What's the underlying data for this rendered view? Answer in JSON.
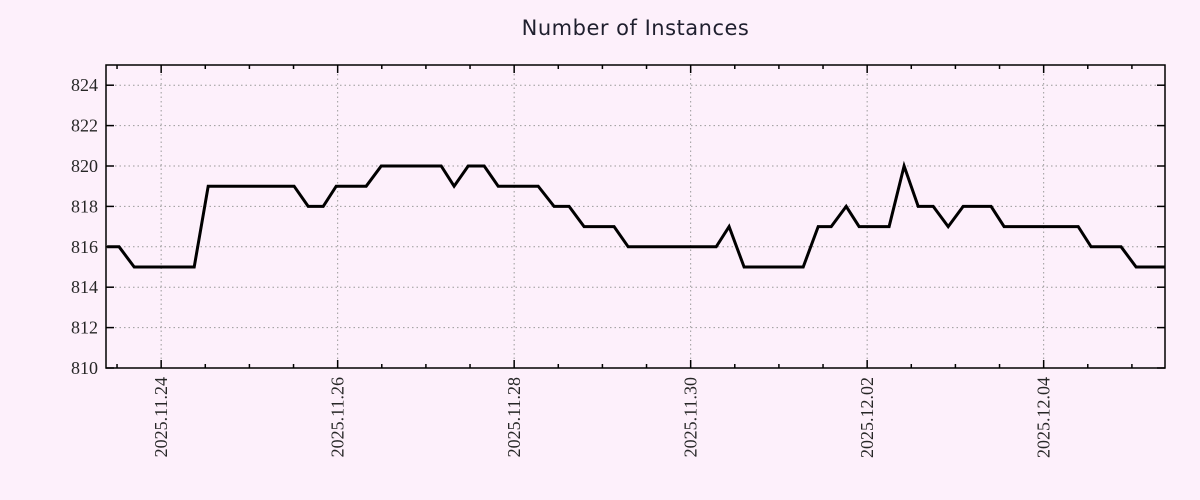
{
  "page": {
    "background_color": "#fdf0fb"
  },
  "chart_data": {
    "type": "line",
    "title": "Number of Instances",
    "xlabel": "",
    "ylabel": "",
    "legend": "none",
    "grid": "dotted",
    "line_color": "#000000",
    "grid_color": "#9a9a9a",
    "axis_color": "#000000",
    "label_color": "#262626",
    "ylim": [
      810,
      825
    ],
    "y_major_ticks": [
      810,
      812,
      814,
      816,
      818,
      820,
      822,
      824
    ],
    "x_domain_days": [
      -0.625,
      11.375
    ],
    "x_epoch_note": "day offsets relative to 2025.11.24 00:00",
    "x_major_ticks": [
      {
        "t": 0,
        "label": "2025.11.24"
      },
      {
        "t": 2,
        "label": "2025.11.26"
      },
      {
        "t": 4,
        "label": "2025.11.28"
      },
      {
        "t": 6,
        "label": "2025.11.30"
      },
      {
        "t": 8,
        "label": "2025.12.02"
      },
      {
        "t": 10,
        "label": "2025.12.04"
      }
    ],
    "x_minor_step_days": 0.5,
    "series": [
      {
        "name": "instances",
        "points": [
          [
            -0.612,
            816
          ],
          [
            -0.476,
            816
          ],
          [
            -0.306,
            815
          ],
          [
            0.374,
            815
          ],
          [
            0.533,
            819
          ],
          [
            1.507,
            819
          ],
          [
            1.666,
            818
          ],
          [
            1.836,
            818
          ],
          [
            1.983,
            819
          ],
          [
            2.323,
            819
          ],
          [
            2.493,
            820
          ],
          [
            3.173,
            820
          ],
          [
            3.32,
            819
          ],
          [
            3.479,
            820
          ],
          [
            3.66,
            820
          ],
          [
            3.819,
            819
          ],
          [
            4.272,
            819
          ],
          [
            4.453,
            818
          ],
          [
            4.623,
            818
          ],
          [
            4.793,
            817
          ],
          [
            5.133,
            817
          ],
          [
            5.292,
            816
          ],
          [
            6.289,
            816
          ],
          [
            6.436,
            817
          ],
          [
            6.606,
            815
          ],
          [
            7.275,
            815
          ],
          [
            7.445,
            817
          ],
          [
            7.592,
            817
          ],
          [
            7.762,
            818
          ],
          [
            7.909,
            817
          ],
          [
            8.249,
            817
          ],
          [
            8.419,
            820
          ],
          [
            8.578,
            818
          ],
          [
            8.748,
            818
          ],
          [
            8.918,
            817
          ],
          [
            9.088,
            818
          ],
          [
            9.405,
            818
          ],
          [
            9.552,
            817
          ],
          [
            10.391,
            817
          ],
          [
            10.538,
            816
          ],
          [
            10.878,
            816
          ],
          [
            11.048,
            815
          ],
          [
            11.375,
            815
          ]
        ]
      }
    ]
  }
}
